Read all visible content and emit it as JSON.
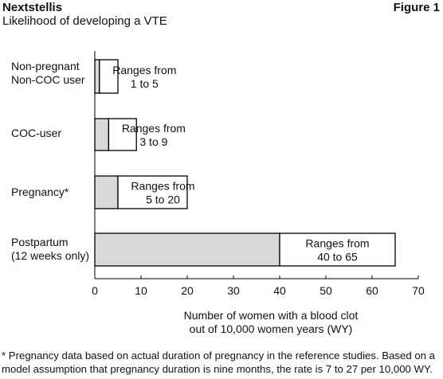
{
  "header": {
    "brand": "Nextstellis",
    "figure_label": "Figure 1",
    "subtitle": "Likelihood of developing a VTE"
  },
  "footnote": {
    "line1": "* Pregnancy data based on actual duration of pregnancy in the reference studies. Based on a",
    "line2": "model assumption that pregnancy duration is nine months, the rate is 7 to 27 per 10,000 WY."
  },
  "chart_data": {
    "type": "bar",
    "orientation": "horizontal",
    "categories": [
      [
        "Non-pregnant",
        "Non-COC user"
      ],
      [
        "COC-user"
      ],
      [
        "Pregnancy*"
      ],
      [
        "Postpartum",
        "(12 weeks only)"
      ]
    ],
    "series": [
      {
        "values": [
          1,
          3,
          5,
          40
        ],
        "color": "#d9d9d9"
      },
      {
        "values": [
          5,
          9,
          20,
          65
        ],
        "color": "#ffffff"
      }
    ],
    "range_labels": [
      [
        "Ranges from",
        "1 to 5"
      ],
      [
        "Ranges from",
        "3 to 9"
      ],
      [
        "Ranges from",
        "5 to 20"
      ],
      [
        "Ranges from",
        "40 to 65"
      ]
    ],
    "x_ticks": [
      0,
      10,
      20,
      30,
      40,
      50,
      60,
      70
    ],
    "xlim": [
      0,
      70
    ],
    "xlabel": [
      "Number of women with a blood clot",
      "out of 10,000 women years (WY)"
    ],
    "grid": false
  }
}
